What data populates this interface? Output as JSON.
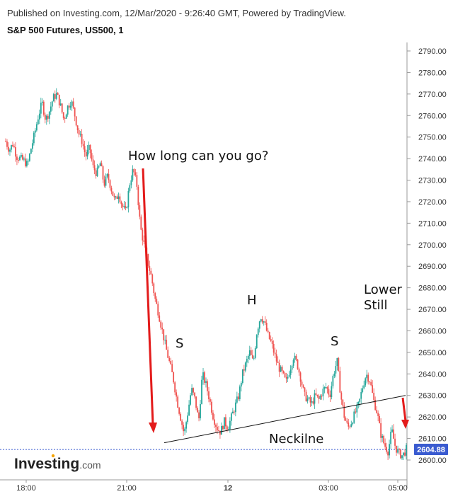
{
  "header": {
    "published": "Published on Investing.com, 12/Mar/2020 - 9:26:40 GMT, Powered by TradingView.",
    "title": "S&P 500 Futures, US500, 1"
  },
  "logo": {
    "word": "Investing",
    "suffix": ".com"
  },
  "colors": {
    "up": "#26a69a",
    "down": "#ef5350",
    "arrow": "#e31b1b",
    "price_line": "#3a5bd0",
    "price_badge": "#3a5bd0"
  },
  "chart_data": {
    "type": "candlestick",
    "y_ticks": [
      2600,
      2610,
      2620,
      2630,
      2640,
      2650,
      2660,
      2670,
      2680,
      2690,
      2700,
      2710,
      2720,
      2730,
      2740,
      2750,
      2760,
      2770,
      2780,
      2790
    ],
    "x_ticks": [
      "18:00",
      "21:00",
      "12",
      "03:00",
      "05:00"
    ],
    "ylim": [
      2595,
      2795
    ],
    "last_price": "2604.88",
    "price_path": [
      [
        0,
        2748
      ],
      [
        1,
        2744
      ],
      [
        2,
        2747
      ],
      [
        3,
        2741
      ],
      [
        4,
        2740
      ],
      [
        5,
        2739
      ],
      [
        6,
        2737
      ],
      [
        7,
        2745
      ],
      [
        8,
        2752
      ],
      [
        9,
        2760
      ],
      [
        10,
        2766
      ],
      [
        11,
        2758
      ],
      [
        12,
        2762
      ],
      [
        13,
        2768
      ],
      [
        14,
        2770
      ],
      [
        15,
        2765
      ],
      [
        16,
        2758
      ],
      [
        17,
        2764
      ],
      [
        18,
        2767
      ],
      [
        19,
        2760
      ],
      [
        20,
        2752
      ],
      [
        21,
        2748
      ],
      [
        22,
        2741
      ],
      [
        23,
        2745
      ],
      [
        24,
        2736
      ],
      [
        25,
        2733
      ],
      [
        26,
        2738
      ],
      [
        27,
        2728
      ],
      [
        28,
        2732
      ],
      [
        29,
        2726
      ],
      [
        30,
        2720
      ],
      [
        31,
        2724
      ],
      [
        32,
        2718
      ],
      [
        33,
        2715
      ],
      [
        34,
        2728
      ],
      [
        35,
        2735
      ],
      [
        36,
        2728
      ],
      [
        37,
        2708
      ],
      [
        38,
        2700
      ],
      [
        39,
        2692
      ],
      [
        40,
        2685
      ],
      [
        41,
        2675
      ],
      [
        42,
        2668
      ],
      [
        43,
        2660
      ],
      [
        44,
        2652
      ],
      [
        45,
        2645
      ],
      [
        46,
        2638
      ],
      [
        47,
        2628
      ],
      [
        48,
        2620
      ],
      [
        49,
        2612
      ],
      [
        50,
        2622
      ],
      [
        51,
        2633
      ],
      [
        52,
        2628
      ],
      [
        53,
        2618
      ],
      [
        54,
        2640
      ],
      [
        55,
        2635
      ],
      [
        56,
        2628
      ],
      [
        57,
        2620
      ],
      [
        58,
        2615
      ],
      [
        59,
        2613
      ],
      [
        60,
        2618
      ],
      [
        61,
        2615
      ],
      [
        62,
        2620
      ],
      [
        63,
        2625
      ],
      [
        64,
        2630
      ],
      [
        65,
        2640
      ],
      [
        66,
        2645
      ],
      [
        67,
        2650
      ],
      [
        68,
        2645
      ],
      [
        69,
        2660
      ],
      [
        70,
        2667
      ],
      [
        71,
        2664
      ],
      [
        72,
        2658
      ],
      [
        73,
        2654
      ],
      [
        74,
        2648
      ],
      [
        75,
        2643
      ],
      [
        76,
        2640
      ],
      [
        77,
        2636
      ],
      [
        78,
        2642
      ],
      [
        79,
        2648
      ],
      [
        80,
        2645
      ],
      [
        81,
        2638
      ],
      [
        82,
        2630
      ],
      [
        83,
        2628
      ],
      [
        84,
        2626
      ],
      [
        85,
        2630
      ],
      [
        86,
        2628
      ],
      [
        87,
        2632
      ],
      [
        88,
        2634
      ],
      [
        89,
        2630
      ],
      [
        90,
        2640
      ],
      [
        91,
        2646
      ],
      [
        92,
        2630
      ],
      [
        93,
        2620
      ],
      [
        94,
        2615
      ],
      [
        95,
        2618
      ],
      [
        96,
        2622
      ],
      [
        97,
        2626
      ],
      [
        98,
        2634
      ],
      [
        99,
        2640
      ],
      [
        100,
        2637
      ],
      [
        101,
        2628
      ],
      [
        102,
        2622
      ],
      [
        103,
        2612
      ],
      [
        104,
        2607
      ],
      [
        105,
        2604
      ],
      [
        106,
        2614
      ],
      [
        107,
        2606
      ],
      [
        108,
        2603
      ],
      [
        109,
        2602
      ],
      [
        110,
        2605
      ]
    ],
    "neckline": [
      [
        0,
        2608
      ],
      [
        1,
        2630
      ]
    ],
    "annotations": [
      {
        "id": "how-long",
        "text": "How long can you go?"
      },
      {
        "id": "left-shoulder",
        "text": "S"
      },
      {
        "id": "head",
        "text": "H"
      },
      {
        "id": "right-shoulder",
        "text": "S"
      },
      {
        "id": "lower-still-1",
        "text": "Lower"
      },
      {
        "id": "lower-still-2",
        "text": "Still"
      },
      {
        "id": "neckline-label",
        "text": "Neckilne"
      }
    ]
  }
}
